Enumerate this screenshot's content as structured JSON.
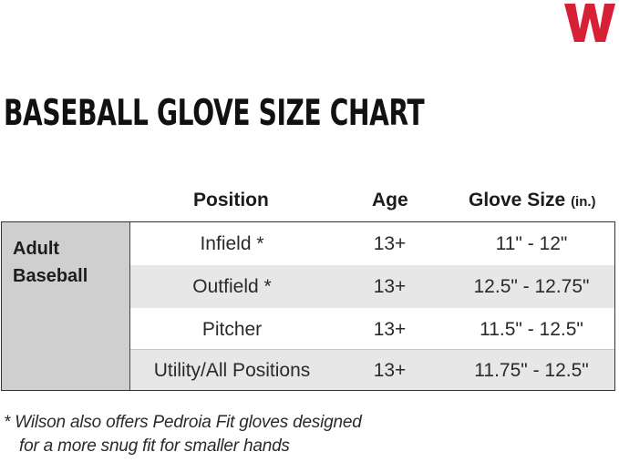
{
  "brand": {
    "logo_color": "#d71f36"
  },
  "title": "BASEBALL GLOVE SIZE CHART",
  "table": {
    "headers": {
      "position": "Position",
      "age": "Age",
      "glove_size": "Glove Size",
      "unit": "(in.)"
    },
    "group": {
      "line1": "Adult",
      "line2": "Baseball"
    },
    "rows": [
      {
        "position": "Infield *",
        "age": "13+",
        "glove_size": "11\" - 12\""
      },
      {
        "position": "Outfield *",
        "age": "13+",
        "glove_size": "12.5\" - 12.75\""
      },
      {
        "position": "Pitcher",
        "age": "13+",
        "glove_size": "11.5\" - 12.5\""
      },
      {
        "position": "Utility/All Positions",
        "age": "13+",
        "glove_size": "11.75\" - 12.5\""
      }
    ]
  },
  "footnote": {
    "line1": "*  Wilson also offers Pedroia Fit gloves designed",
    "line2": "for a more snug fit for smaller hands"
  }
}
